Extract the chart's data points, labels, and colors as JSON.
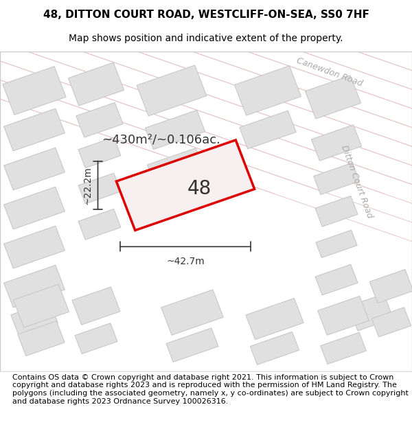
{
  "title_line1": "48, DITTON COURT ROAD, WESTCLIFF-ON-SEA, SS0 7HF",
  "title_line2": "Map shows position and indicative extent of the property.",
  "footer_text": "Contains OS data © Crown copyright and database right 2021. This information is subject to Crown copyright and database rights 2023 and is reproduced with the permission of HM Land Registry. The polygons (including the associated geometry, namely x, y co-ordinates) are subject to Crown copyright and database rights 2023 Ordnance Survey 100026316.",
  "bg_color": "#f5f5f5",
  "map_bg": "#f0f0f0",
  "road_label_canewdon": "Canewdon Road",
  "road_label_ditton": "Ditton Court Road",
  "area_text": "~430m²/~0.106ac.",
  "property_label": "48",
  "width_label": "~42.7m",
  "height_label": "~22.2m",
  "title_fontsize": 11,
  "subtitle_fontsize": 10,
  "footer_fontsize": 8,
  "map_border_color": "#cccccc",
  "road_line_color": "#e8c8c8",
  "building_fill": "#e0e0e0",
  "building_edge": "#c8c8c8",
  "property_edge": "#dd0000",
  "property_fill": "#f8f0f0",
  "dim_line_color": "#333333",
  "road_label_color": "#aaaaaa",
  "area_text_color": "#333333",
  "property_number_color": "#333333"
}
